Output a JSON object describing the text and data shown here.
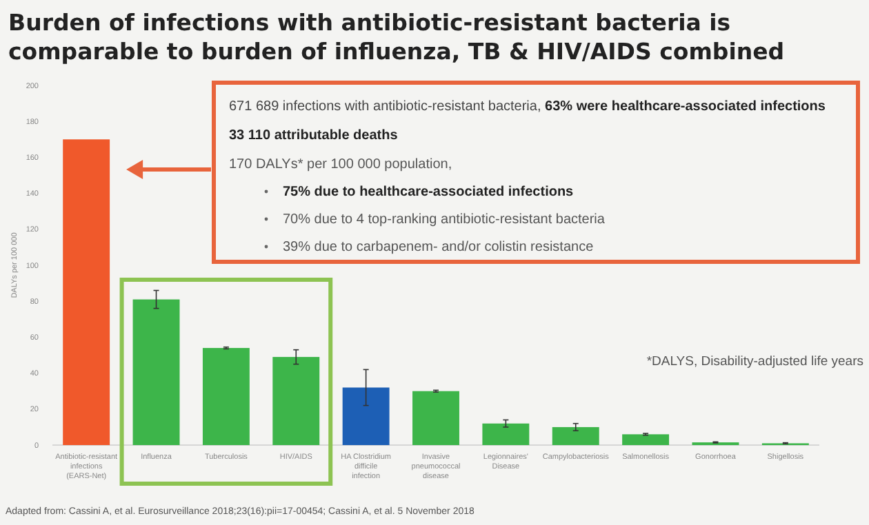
{
  "chart_data": {
    "type": "bar",
    "title": "Burden of infections with antibiotic-resistant bacteria is comparable to burden of influenza, TB & HIV/AIDS combined",
    "ylabel": "DALYs per 100 000",
    "categories": [
      "Antibiotic-resistant infections (EARS-Net)",
      "Influenza",
      "Tuberculosis",
      "HIV/AIDS",
      "HA Clostridium difficile infection",
      "Invasive pneumococcal disease",
      "Legionnaires' Disease",
      "Campylobacteriosis",
      "Salmonellosis",
      "Gonorrhoea",
      "Shigellosis"
    ],
    "values": [
      170,
      81,
      54,
      49,
      32,
      30,
      12,
      10,
      6,
      1.5,
      1
    ],
    "errors": [
      null,
      5,
      0.5,
      4,
      10,
      0.5,
      2,
      2,
      0.5,
      0.3,
      0.3
    ],
    "colors": [
      "#f0592b",
      "#3db54a",
      "#3db54a",
      "#3db54a",
      "#1d5fb5",
      "#3db54a",
      "#3db54a",
      "#3db54a",
      "#3db54a",
      "#3db54a",
      "#3db54a"
    ],
    "ylim": [
      0,
      200
    ],
    "yticks": [
      0,
      20,
      40,
      60,
      80,
      100,
      120,
      140,
      160,
      180,
      200
    ],
    "grid": false,
    "annotations": [
      "671 689 infections with antibiotic-resistant bacteria,",
      "63% were healthcare-associated infections",
      "33 110 attributable deaths",
      "170 DALYs* per 100 000 population,",
      "75% due to healthcare-associated infections",
      "70% due to 4 top-ranking antibiotic-resistant bacteria",
      "39% due to carbapenem- and/or colistin resistance",
      "*DALYS, Disability-adjusted life years",
      "Adapted from: Cassini A, et al. Eurosurveillance 2018;23(16):pii=17-00454; Cassini A, et al. 5 November 2018"
    ]
  }
}
